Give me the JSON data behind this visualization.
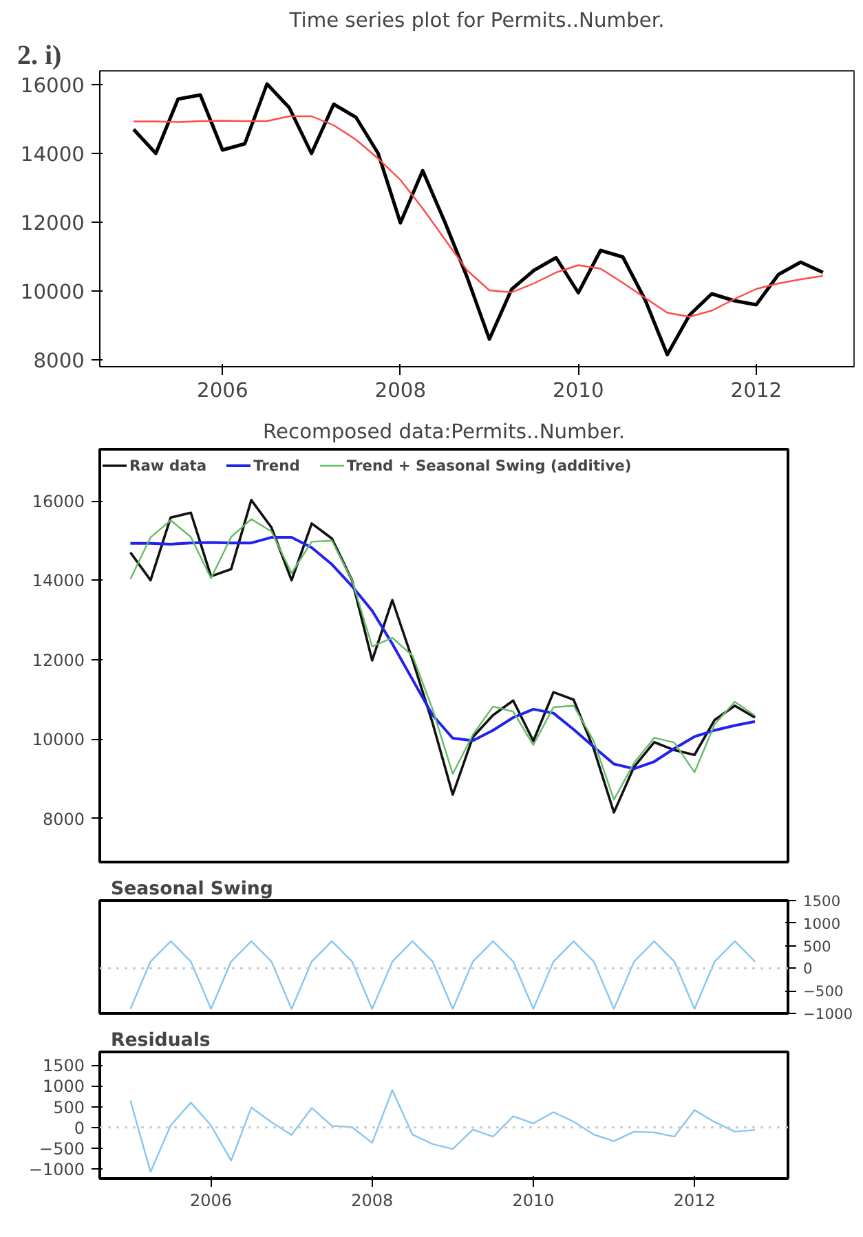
{
  "chart_data": [
    {
      "type": "line",
      "title": "Time series plot for Permits..Number.",
      "annotations": [
        "2.   i)"
      ],
      "x": [
        2005.0,
        2005.25,
        2005.5,
        2005.75,
        2006.0,
        2006.25,
        2006.5,
        2006.75,
        2007.0,
        2007.25,
        2007.5,
        2007.75,
        2008.0,
        2008.25,
        2008.5,
        2008.75,
        2009.0,
        2009.25,
        2009.5,
        2009.75,
        2010.0,
        2010.25,
        2010.5,
        2010.75,
        2011.0,
        2011.25,
        2011.5,
        2011.75,
        2012.0,
        2012.25,
        2012.5,
        2012.75
      ],
      "series": [
        {
          "color": "#000000",
          "values": [
            14700,
            14000,
            15580,
            15700,
            14100,
            14280,
            16020,
            15330,
            14000,
            15430,
            15050,
            14000,
            11980,
            13500,
            12000,
            10400,
            8600,
            10050,
            10600,
            10970,
            9950,
            11180,
            10990,
            9750,
            8150,
            9300,
            9920,
            9720,
            9600,
            10480,
            10840,
            10540
          ]
        },
        {
          "color": "#ff4a4a",
          "values": [
            14930,
            14930,
            14910,
            14940,
            14950,
            14940,
            14940,
            15080,
            15080,
            14820,
            14400,
            13850,
            13230,
            12400,
            11500,
            10600,
            10020,
            9960,
            10220,
            10540,
            10750,
            10650,
            10240,
            9800,
            9370,
            9250,
            9430,
            9760,
            10060,
            10220,
            10340,
            10440
          ]
        }
      ],
      "xlim": [
        2004.62,
        2013.1
      ],
      "xticks": [
        2006,
        2008,
        2010,
        2012
      ],
      "ylim": [
        7800,
        16400
      ],
      "yticks": [
        8000,
        10000,
        12000,
        14000,
        16000
      ],
      "grid": false,
      "legend": false
    },
    {
      "type": "line",
      "title": "Recomposed data:Permits..Number.",
      "x": [
        2005.0,
        2005.25,
        2005.5,
        2005.75,
        2006.0,
        2006.25,
        2006.5,
        2006.75,
        2007.0,
        2007.25,
        2007.5,
        2007.75,
        2008.0,
        2008.25,
        2008.5,
        2008.75,
        2009.0,
        2009.25,
        2009.5,
        2009.75,
        2010.0,
        2010.25,
        2010.5,
        2010.75,
        2011.0,
        2011.25,
        2011.5,
        2011.75,
        2012.0,
        2012.25,
        2012.5,
        2012.75
      ],
      "series": [
        {
          "name": "Raw data",
          "color": "#111111",
          "values": [
            14700,
            14000,
            15580,
            15700,
            14100,
            14280,
            16020,
            15330,
            14000,
            15430,
            15050,
            14000,
            11980,
            13500,
            12000,
            10400,
            8600,
            10050,
            10600,
            10970,
            9950,
            11180,
            10990,
            9750,
            8150,
            9300,
            9920,
            9720,
            9600,
            10480,
            10840,
            10540
          ]
        },
        {
          "name": "Trend",
          "color": "#2222ee",
          "values": [
            14930,
            14930,
            14910,
            14940,
            14950,
            14940,
            14940,
            15080,
            15080,
            14820,
            14400,
            13850,
            13230,
            12400,
            11500,
            10600,
            10020,
            9960,
            10220,
            10540,
            10750,
            10650,
            10240,
            9800,
            9370,
            9250,
            9430,
            9760,
            10060,
            10220,
            10340,
            10440
          ]
        },
        {
          "name": "Trend + Seasonal Swing (additive)",
          "color": "#66bb66",
          "values": [
            14030,
            15080,
            15510,
            15090,
            14050,
            15090,
            15540,
            15230,
            14180,
            14970,
            15000,
            14000,
            12330,
            12550,
            12100,
            10750,
            9120,
            10110,
            10820,
            10690,
            9850,
            10800,
            10840,
            9950,
            8470,
            9400,
            10030,
            9910,
            9160,
            10370,
            10940,
            10590
          ]
        }
      ],
      "xlim": [
        2004.62,
        2013.16
      ],
      "ylim": [
        6900,
        17300
      ],
      "yticks": [
        8000,
        10000,
        12000,
        14000,
        16000
      ],
      "grid": false,
      "legend": "top left",
      "tick_labels": "y"
    },
    {
      "type": "line",
      "title": "Seasonal Swing",
      "x": [
        2005.0,
        2005.25,
        2005.5,
        2005.75,
        2006.0,
        2006.25,
        2006.5,
        2006.75,
        2007.0,
        2007.25,
        2007.5,
        2007.75,
        2008.0,
        2008.25,
        2008.5,
        2008.75,
        2009.0,
        2009.25,
        2009.5,
        2009.75,
        2010.0,
        2010.25,
        2010.5,
        2010.75,
        2011.0,
        2011.25,
        2011.5,
        2011.75,
        2012.0,
        2012.25,
        2012.5,
        2012.75
      ],
      "series": [
        {
          "color": "#88c6f0",
          "axis": "y2",
          "values": [
            -900,
            150,
            600,
            150,
            -900,
            150,
            600,
            150,
            -900,
            150,
            600,
            150,
            -900,
            150,
            600,
            150,
            -900,
            150,
            600,
            150,
            -900,
            150,
            600,
            150,
            -900,
            150,
            600,
            150,
            -900,
            150,
            600,
            150
          ]
        }
      ],
      "xlim": [
        2004.62,
        2013.16
      ],
      "y2lim": [
        -1000,
        1500
      ],
      "y2ticks": [
        -1000,
        -500,
        0,
        500,
        1000,
        1500
      ],
      "grid": false,
      "legend": false,
      "tick_labels": "y",
      "ref_lines": [
        {
          "axis": "y2",
          "value": 0,
          "color": "#cccccc",
          "line_style": "dotted"
        }
      ]
    },
    {
      "type": "line",
      "title": "Residuals",
      "x": [
        2005.0,
        2005.25,
        2005.5,
        2005.75,
        2006.0,
        2006.25,
        2006.5,
        2006.75,
        2007.0,
        2007.25,
        2007.5,
        2007.75,
        2008.0,
        2008.25,
        2008.5,
        2008.75,
        2009.0,
        2009.25,
        2009.5,
        2009.75,
        2010.0,
        2010.25,
        2010.5,
        2010.75,
        2011.0,
        2011.25,
        2011.5,
        2011.75,
        2012.0,
        2012.25,
        2012.5,
        2012.75
      ],
      "series": [
        {
          "color": "#88c6f0",
          "values": [
            650,
            -1070,
            50,
            600,
            50,
            -800,
            480,
            130,
            -180,
            470,
            40,
            10,
            -370,
            900,
            -170,
            -400,
            -520,
            -50,
            -220,
            270,
            100,
            370,
            140,
            -170,
            -330,
            -100,
            -120,
            -220,
            420,
            130,
            -100,
            -60
          ]
        }
      ],
      "xlim": [
        2004.62,
        2013.16
      ],
      "xticks": [
        2006,
        2008,
        2010,
        2012
      ],
      "ylim": [
        -1230,
        1820
      ],
      "yticks": [
        -1000,
        -500,
        0,
        500,
        1000,
        1500
      ],
      "grid": false,
      "legend": false,
      "ref_lines": [
        {
          "axis": "y",
          "value": 0,
          "color": "#cccccc",
          "line_style": "dotted"
        }
      ]
    }
  ]
}
